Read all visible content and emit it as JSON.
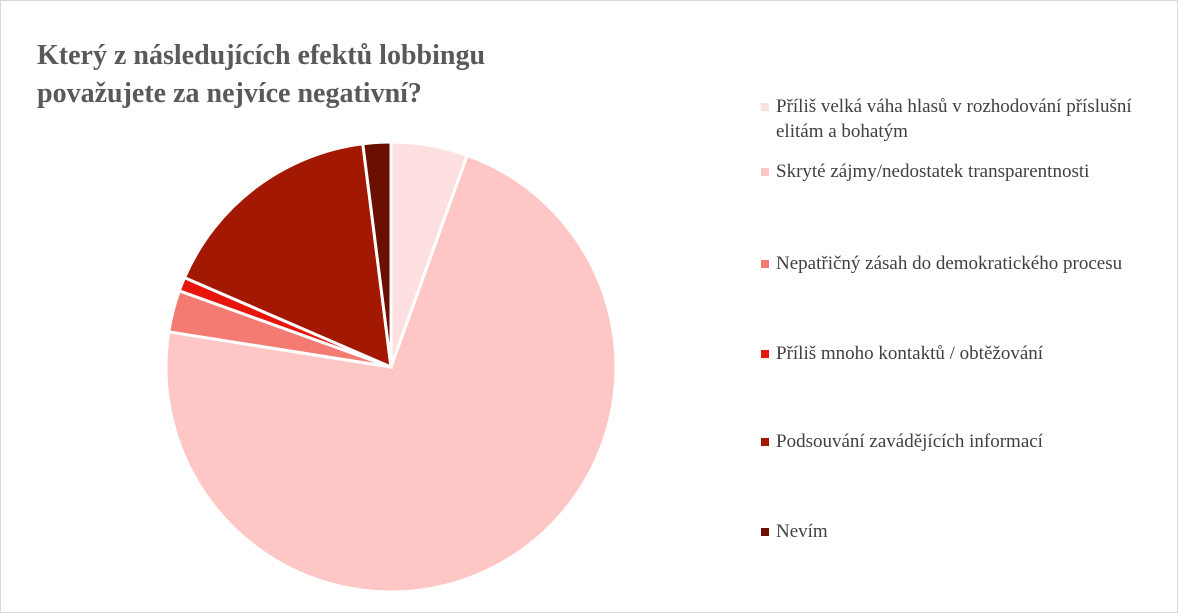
{
  "chart_data": {
    "type": "pie",
    "title": "Který z následujících efektů lobbingu považujete za nejvíce negativní?",
    "categories": [
      "Příliš velká váha hlasů v rozhodování příslušní elitám a bohatým",
      "Skryté zájmy/nedostatek transparentnosti",
      "Nepatřičný zásah do demokratického procesu",
      "Příliš mnoho kontaktů / obtěžování",
      "Podsouvání zavádějících informací",
      "Nevím"
    ],
    "values": [
      5.5,
      72,
      3,
      1,
      16.5,
      2
    ],
    "colors": [
      "#fde0df",
      "#ffc6c6",
      "#f47b72",
      "#e8150d",
      "#a31800",
      "#6b0f00"
    ],
    "legend": "right"
  }
}
